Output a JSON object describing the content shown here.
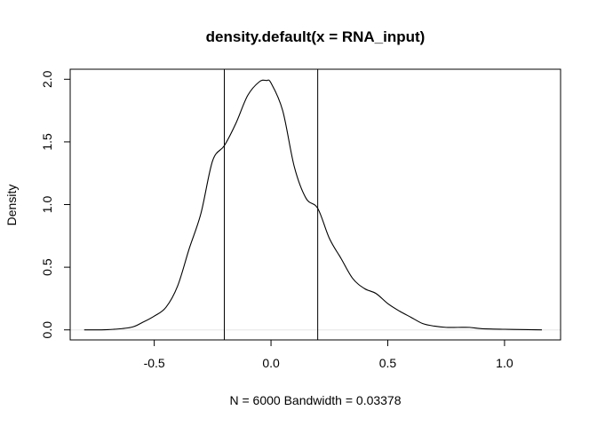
{
  "chart_data": {
    "type": "line",
    "title": "density.default(x = RNA_input)",
    "xlabel": "N = 6000   Bandwidth = 0.03378",
    "ylabel": "Density",
    "xlim": [
      -0.86,
      1.24
    ],
    "ylim": [
      -0.08,
      2.08
    ],
    "xticks": [
      -0.5,
      0.0,
      0.5,
      1.0
    ],
    "xtick_labels": [
      "-0.5",
      "0.0",
      "0.5",
      "1.0"
    ],
    "yticks": [
      0.0,
      0.5,
      1.0,
      1.5,
      2.0
    ],
    "ytick_labels": [
      "0.0",
      "0.5",
      "1.0",
      "1.5",
      "2.0"
    ],
    "grid": false,
    "baseline_y": 0,
    "baseline_color": "#e6e6e6",
    "line_color": "#000000",
    "vlines": [
      -0.2,
      0.2
    ],
    "series": [
      {
        "x": [
          -0.8,
          -0.7,
          -0.6,
          -0.55,
          -0.5,
          -0.45,
          -0.4,
          -0.35,
          -0.3,
          -0.25,
          -0.2,
          -0.15,
          -0.1,
          -0.05,
          -0.02,
          0.0,
          0.05,
          0.1,
          0.15,
          0.2,
          0.25,
          0.3,
          0.35,
          0.4,
          0.45,
          0.5,
          0.55,
          0.6,
          0.65,
          0.7,
          0.75,
          0.8,
          0.85,
          0.9,
          1.0,
          1.1,
          1.16
        ],
        "y": [
          0.0,
          0.002,
          0.02,
          0.06,
          0.11,
          0.18,
          0.35,
          0.65,
          0.93,
          1.35,
          1.47,
          1.65,
          1.87,
          1.98,
          1.99,
          1.97,
          1.75,
          1.3,
          1.05,
          0.97,
          0.73,
          0.57,
          0.41,
          0.33,
          0.29,
          0.21,
          0.15,
          0.1,
          0.05,
          0.03,
          0.02,
          0.02,
          0.02,
          0.01,
          0.005,
          0.002,
          0.0
        ]
      }
    ]
  }
}
